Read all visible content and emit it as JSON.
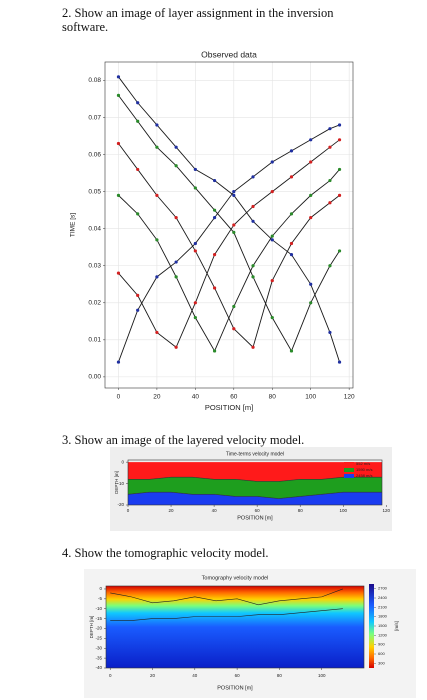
{
  "sections": [
    {
      "heading": "2. Show an image of layer assignment in the inversion software.",
      "chart": {
        "type": "line",
        "title": "Observed data",
        "x_label": "POSITION [m]",
        "y_label": "TIME [s]",
        "x": [
          0,
          10,
          20,
          30,
          40,
          50,
          60,
          70,
          80,
          90,
          100,
          110,
          115
        ],
        "series": [
          {
            "color": "#1a1a1a",
            "marker_color": "#1f2fa0",
            "values": [
              0.004,
              0.018,
              0.027,
              0.031,
              0.036,
              0.043,
              0.05,
              0.054,
              0.058,
              0.061,
              0.064,
              0.067,
              0.068
            ]
          },
          {
            "color": "#1a1a1a",
            "marker_color": "#d32020",
            "values": [
              0.028,
              0.022,
              0.012,
              0.008,
              0.02,
              0.033,
              0.041,
              0.046,
              0.05,
              0.054,
              0.058,
              0.062,
              0.064
            ]
          },
          {
            "color": "#1a1a1a",
            "marker_color": "#2a8a2a",
            "values": [
              0.049,
              0.044,
              0.037,
              0.027,
              0.016,
              0.007,
              0.019,
              0.03,
              0.038,
              0.044,
              0.049,
              0.053,
              0.056
            ]
          },
          {
            "color": "#1a1a1a",
            "marker_color": "#d32020",
            "values": [
              0.063,
              0.056,
              0.049,
              0.043,
              0.034,
              0.024,
              0.013,
              0.008,
              0.026,
              0.036,
              0.043,
              0.047,
              0.049
            ]
          },
          {
            "color": "#1a1a1a",
            "marker_color": "#2a8a2a",
            "values": [
              0.076,
              0.069,
              0.062,
              0.057,
              0.051,
              0.045,
              0.039,
              0.027,
              0.016,
              0.007,
              0.02,
              0.03,
              0.034
            ]
          },
          {
            "color": "#1a1a1a",
            "marker_color": "#1f2fa0",
            "values": [
              0.081,
              0.074,
              0.068,
              0.062,
              0.056,
              0.053,
              0.049,
              0.042,
              0.037,
              0.033,
              0.025,
              0.012,
              0.004
            ]
          }
        ],
        "xlim": [
          -7,
          122
        ],
        "xticks": [
          0,
          20,
          40,
          60,
          80,
          100,
          120
        ],
        "ylim": [
          -0.003,
          0.085
        ],
        "yticks": [
          {
            "value": 0,
            "label": "0.00"
          },
          {
            "value": 0.01,
            "label": "0.01"
          },
          {
            "value": 0.02,
            "label": "0.02"
          },
          {
            "value": 0.03,
            "label": "0.03"
          },
          {
            "value": 0.04,
            "label": "0.04"
          },
          {
            "value": 0.05,
            "label": "0.05"
          },
          {
            "value": 0.06,
            "label": "0.06"
          },
          {
            "value": 0.07,
            "label": "0.07"
          },
          {
            "value": 0.08,
            "label": "0.08"
          }
        ],
        "grid": true
      }
    },
    {
      "heading": "3. Show an image of the layered velocity model.",
      "chart": {
        "type": "layers",
        "title": "Time-terms velocity model",
        "x_label": "POSITION [m]",
        "y_label": "DEPTH [m]",
        "x": [
          0,
          10,
          20,
          30,
          40,
          50,
          60,
          70,
          80,
          90,
          100,
          110,
          118
        ],
        "series": [
          {
            "name": "552 m/s",
            "color": "#ff1a1a",
            "values": [
              -8,
              -8,
              -7,
              -7,
              -8,
              -8,
              -9,
              -9,
              -8,
              -8,
              -7,
              -7,
              -7
            ]
          },
          {
            "name": "1590 m/s",
            "color": "#1e9e1e",
            "values": [
              -15,
              -14,
              -14,
              -15,
              -15,
              -16,
              -16,
              -17,
              -16,
              -15,
              -14,
              -14,
              -14
            ]
          },
          {
            "name": "2458 m/s",
            "color": "#1a3cf0"
          }
        ],
        "xlim": [
          0,
          118
        ],
        "xticks": [
          0,
          20,
          40,
          60,
          80,
          100,
          120
        ],
        "ylim": [
          -20,
          1
        ],
        "yticks": [
          0,
          -10,
          -20
        ]
      }
    },
    {
      "heading": "4. Show the tomographic velocity model.",
      "chart": {
        "type": "heatmap",
        "title": "Tomography velocity model",
        "x_label": "POSITION [m]",
        "y_label": "DEPTH [m]",
        "colorbar_label": "[m/s]",
        "x": [
          0,
          10,
          20,
          30,
          40,
          50,
          60,
          70,
          80,
          90,
          100,
          110
        ],
        "series": [
          {
            "color": "#222222",
            "values": [
              -2,
              -4,
              -7,
              -6,
              -4,
              -6,
              -5,
              -8,
              -6,
              -5,
              -4,
              0
            ]
          },
          {
            "color": "#222222",
            "values": [
              -16,
              -16,
              -15,
              -15,
              -14,
              -14,
              -14,
              -13,
              -13,
              -12,
              -11,
              -10
            ]
          }
        ],
        "xlim": [
          -2,
          120
        ],
        "xticks": [
          0,
          20,
          40,
          60,
          80,
          100
        ],
        "ylim": [
          -40,
          1.5
        ],
        "yticks": [
          0,
          -5,
          -10,
          -15,
          -20,
          -25,
          -30,
          -35,
          -40
        ],
        "clim": [
          150,
          2850
        ],
        "cticks": [
          2700,
          2400,
          2100,
          1800,
          1500,
          1200,
          900,
          600,
          300
        ]
      }
    }
  ]
}
